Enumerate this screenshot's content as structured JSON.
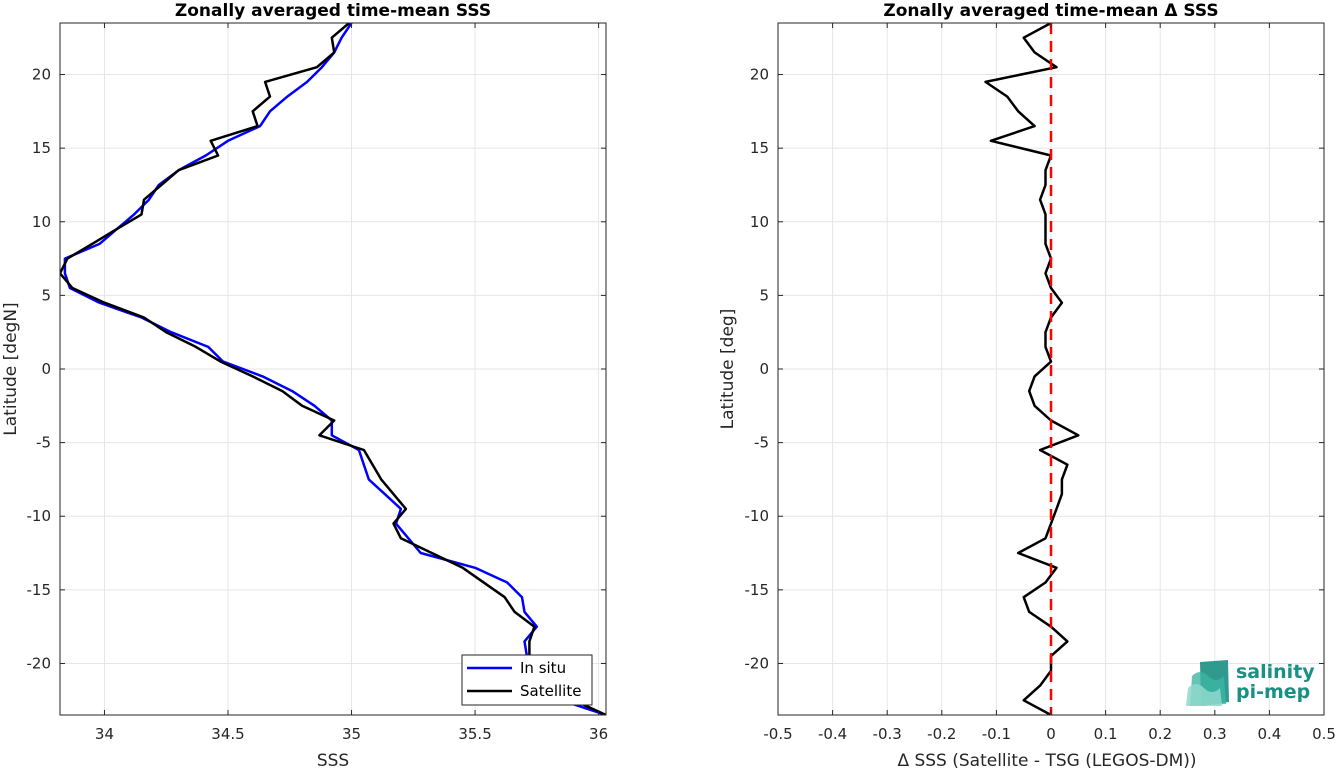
{
  "chart_data": [
    {
      "type": "line",
      "title": "Zonally averaged time-mean SSS",
      "xlabel": "SSS",
      "ylabel": "Latitude [degN]",
      "xlim": [
        33.82,
        36.03
      ],
      "ylim": [
        -23.5,
        23.5
      ],
      "xticks": [
        34,
        34.5,
        35,
        35.5,
        36
      ],
      "yticks": [
        -20,
        -15,
        -10,
        -5,
        0,
        5,
        10,
        15,
        20
      ],
      "grid": true,
      "legend": "bottom-right",
      "series": [
        {
          "name": "In situ",
          "color": "#0000ff",
          "points": [
            [
              35.0,
              23.5
            ],
            [
              34.96,
              22.5
            ],
            [
              34.93,
              21.5
            ],
            [
              34.88,
              20.5
            ],
            [
              34.82,
              19.5
            ],
            [
              34.74,
              18.5
            ],
            [
              34.67,
              17.5
            ],
            [
              34.63,
              16.5
            ],
            [
              34.5,
              15.5
            ],
            [
              34.41,
              14.5
            ],
            [
              34.3,
              13.5
            ],
            [
              34.22,
              12.5
            ],
            [
              34.18,
              11.5
            ],
            [
              34.12,
              10.5
            ],
            [
              34.05,
              9.5
            ],
            [
              33.98,
              8.5
            ],
            [
              33.84,
              7.5
            ],
            [
              33.84,
              6.5
            ],
            [
              33.86,
              5.5
            ],
            [
              33.98,
              4.5
            ],
            [
              34.15,
              3.5
            ],
            [
              34.27,
              2.5
            ],
            [
              34.42,
              1.5
            ],
            [
              34.48,
              0.5
            ],
            [
              34.64,
              -0.5
            ],
            [
              34.76,
              -1.5
            ],
            [
              34.85,
              -2.5
            ],
            [
              34.92,
              -3.5
            ],
            [
              34.92,
              -4.5
            ],
            [
              35.03,
              -5.5
            ],
            [
              35.07,
              -7.5
            ],
            [
              35.2,
              -9.5
            ],
            [
              35.18,
              -10.5
            ],
            [
              35.28,
              -12.5
            ],
            [
              35.5,
              -13.5
            ],
            [
              35.63,
              -14.5
            ],
            [
              35.69,
              -15.5
            ],
            [
              35.7,
              -16.5
            ],
            [
              35.75,
              -17.5
            ],
            [
              35.7,
              -18.5
            ],
            [
              35.71,
              -19.5
            ],
            [
              35.74,
              -20.5
            ],
            [
              35.8,
              -21.5
            ],
            [
              35.85,
              -22.5
            ],
            [
              36.03,
              -23.5
            ]
          ]
        },
        {
          "name": "Satellite",
          "color": "#000000",
          "points": [
            [
              34.99,
              23.5
            ],
            [
              34.92,
              22.5
            ],
            [
              34.93,
              21.5
            ],
            [
              34.86,
              20.5
            ],
            [
              34.65,
              19.5
            ],
            [
              34.67,
              18.5
            ],
            [
              34.6,
              17.5
            ],
            [
              34.62,
              16.5
            ],
            [
              34.43,
              15.5
            ],
            [
              34.46,
              14.5
            ],
            [
              34.3,
              13.5
            ],
            [
              34.23,
              12.5
            ],
            [
              34.16,
              11.5
            ],
            [
              34.15,
              10.5
            ],
            [
              34.05,
              9.5
            ],
            [
              33.95,
              8.5
            ],
            [
              33.85,
              7.5
            ],
            [
              33.82,
              6.5
            ],
            [
              33.87,
              5.5
            ],
            [
              34.0,
              4.5
            ],
            [
              34.16,
              3.5
            ],
            [
              34.25,
              2.5
            ],
            [
              34.37,
              1.5
            ],
            [
              34.47,
              0.5
            ],
            [
              34.6,
              -0.5
            ],
            [
              34.72,
              -1.5
            ],
            [
              34.8,
              -2.5
            ],
            [
              34.93,
              -3.5
            ],
            [
              34.87,
              -4.5
            ],
            [
              35.05,
              -5.5
            ],
            [
              35.12,
              -7.5
            ],
            [
              35.22,
              -9.5
            ],
            [
              35.17,
              -10.5
            ],
            [
              35.2,
              -11.5
            ],
            [
              35.45,
              -13.5
            ],
            [
              35.62,
              -15.5
            ],
            [
              35.66,
              -16.5
            ],
            [
              35.74,
              -17.5
            ],
            [
              35.72,
              -18.5
            ],
            [
              35.72,
              -19.5
            ],
            [
              35.73,
              -20.5
            ],
            [
              35.75,
              -21.5
            ],
            [
              35.9,
              -22.5
            ],
            [
              36.03,
              -23.5
            ]
          ]
        }
      ]
    },
    {
      "type": "line",
      "title": "Zonally averaged time-mean Δ SSS",
      "xlabel": "Δ SSS (Satellite - TSG (LEGOS-DM))",
      "ylabel": "Latitude [deg]",
      "xlim": [
        -0.5,
        0.5
      ],
      "ylim": [
        -23.5,
        23.5
      ],
      "xticks": [
        -0.5,
        -0.4,
        -0.3,
        -0.2,
        -0.1,
        0,
        0.1,
        0.2,
        0.3,
        0.4,
        0.5
      ],
      "yticks": [
        -20,
        -15,
        -10,
        -5,
        0,
        5,
        10,
        15,
        20
      ],
      "grid": true,
      "reference_line": {
        "x": 0,
        "color": "#ff0000",
        "style": "dashed"
      },
      "series": [
        {
          "color": "#000000",
          "points": [
            [
              0.0,
              23.5
            ],
            [
              -0.05,
              22.5
            ],
            [
              -0.03,
              21.5
            ],
            [
              0.01,
              20.5
            ],
            [
              -0.12,
              19.5
            ],
            [
              -0.08,
              18.5
            ],
            [
              -0.06,
              17.5
            ],
            [
              -0.03,
              16.5
            ],
            [
              -0.11,
              15.5
            ],
            [
              0.0,
              14.5
            ],
            [
              -0.01,
              13.5
            ],
            [
              -0.01,
              12.5
            ],
            [
              -0.02,
              11.5
            ],
            [
              -0.01,
              10.5
            ],
            [
              -0.01,
              9.5
            ],
            [
              -0.01,
              8.5
            ],
            [
              0.0,
              7.5
            ],
            [
              -0.01,
              6.5
            ],
            [
              0.0,
              5.5
            ],
            [
              0.02,
              4.5
            ],
            [
              0.0,
              3.5
            ],
            [
              -0.01,
              2.5
            ],
            [
              -0.01,
              1.5
            ],
            [
              0.0,
              0.5
            ],
            [
              -0.03,
              -0.5
            ],
            [
              -0.04,
              -1.5
            ],
            [
              -0.03,
              -2.5
            ],
            [
              0.0,
              -3.5
            ],
            [
              0.05,
              -4.5
            ],
            [
              -0.02,
              -5.5
            ],
            [
              0.03,
              -6.5
            ],
            [
              0.02,
              -7.5
            ],
            [
              0.02,
              -8.5
            ],
            [
              0.01,
              -9.5
            ],
            [
              0.0,
              -10.5
            ],
            [
              -0.01,
              -11.5
            ],
            [
              -0.06,
              -12.5
            ],
            [
              0.01,
              -13.5
            ],
            [
              -0.01,
              -14.5
            ],
            [
              -0.05,
              -15.5
            ],
            [
              -0.04,
              -16.5
            ],
            [
              0.0,
              -17.5
            ],
            [
              0.03,
              -18.5
            ],
            [
              0.0,
              -19.5
            ],
            [
              0.0,
              -20.5
            ],
            [
              -0.02,
              -21.5
            ],
            [
              -0.05,
              -22.5
            ],
            [
              0.0,
              -23.5
            ]
          ]
        }
      ]
    }
  ],
  "logo": {
    "line1": "salinity",
    "line2": "pi-mep",
    "color": "#1a8f83"
  }
}
